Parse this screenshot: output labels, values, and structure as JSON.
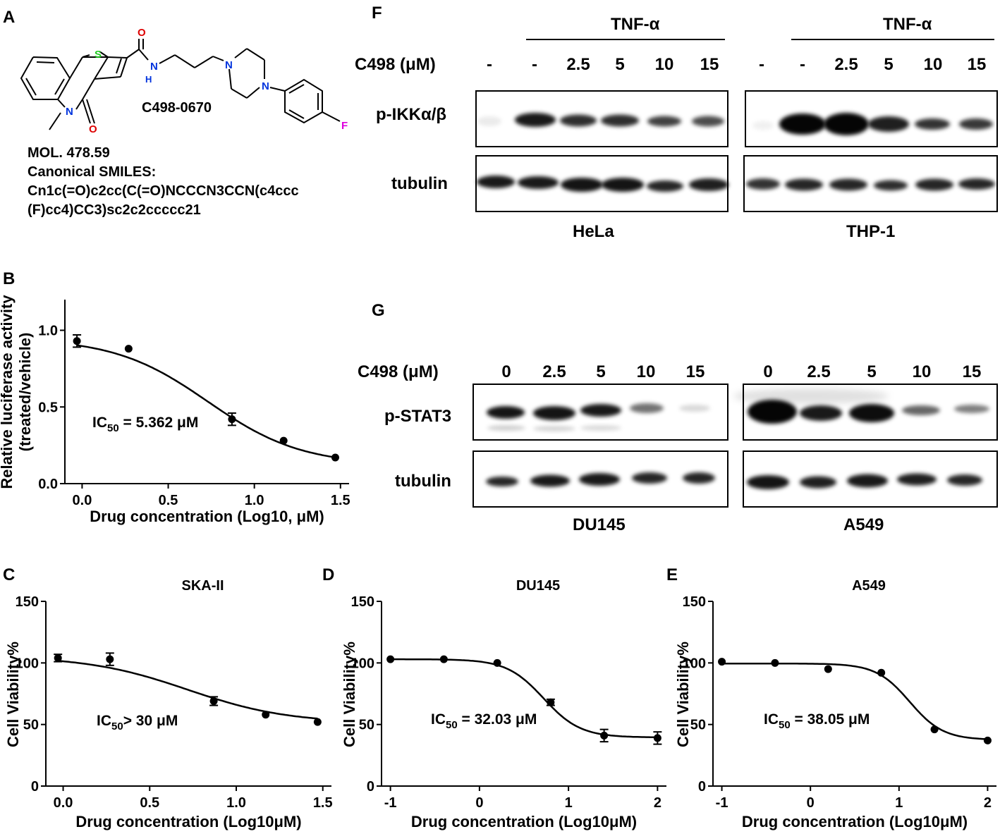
{
  "panels": {
    "A": {
      "letter": "A",
      "compound_name": "C498-0670",
      "mol_label": "MOL. 478.59",
      "smiles_label": "Canonical SMILES:",
      "smiles_line1": "Cn1c(=O)c2cc(C(=O)NCCCN3CCN(c4ccc",
      "smiles_line2": "(F)cc4)CC3)sc2c2ccccc21",
      "atoms": {
        "S": "S",
        "O": "O",
        "N": "N",
        "H": "H",
        "F": "F"
      },
      "colors": {
        "S": "#22cc22",
        "O": "#dd0000",
        "N": "#0033dd",
        "F": "#dd00dd"
      }
    },
    "F": {
      "letter": "F",
      "treatment": "TNF-α",
      "conc_label": "C498 (μM)",
      "lanes": [
        "-",
        "-",
        "2.5",
        "5",
        "10",
        "15"
      ],
      "rows": [
        "p-IKKα/β",
        "tubulin"
      ],
      "cells": [
        "HeLa",
        "THP-1"
      ]
    },
    "G": {
      "letter": "G",
      "conc_label": "C498 (μM)",
      "lanes": [
        "0",
        "2.5",
        "5",
        "10",
        "15"
      ],
      "rows": [
        "p-STAT3",
        "tubulin"
      ],
      "cells": [
        "DU145",
        "A549"
      ]
    }
  },
  "chart_data": [
    {
      "panel": "B",
      "type": "scatter",
      "title": "",
      "xlabel": "Drug concentration (Log10, μM)",
      "ylabel_lines": [
        "Relative luciferase activity",
        "(treated/vehicle)"
      ],
      "xlim": [
        -0.1,
        1.55
      ],
      "ylim": [
        0,
        1.2
      ],
      "xticks": [
        "0.0",
        "0.5",
        "1.0",
        "1.5"
      ],
      "yticks": [
        "0.0",
        "0.5",
        "1.0"
      ],
      "x": [
        -0.03,
        0.27,
        0.87,
        1.17,
        1.47
      ],
      "y": [
        0.93,
        0.88,
        0.42,
        0.28,
        0.17
      ],
      "err": [
        0.04,
        0.0,
        0.04,
        0.0,
        0.0
      ],
      "fit": {
        "bottom": 0.12,
        "top": 0.95,
        "logic50": 0.73,
        "hill": 1.6
      },
      "annotation": {
        "pre": "IC",
        "sub": "50",
        "post": " = 5.362 μM"
      }
    },
    {
      "panel": "C",
      "type": "scatter",
      "title": "SKA-II",
      "xlabel": "Drug concentration (Log10μM)",
      "ylabel_lines": [
        "Cell Viability%"
      ],
      "xlim": [
        -0.1,
        1.55
      ],
      "ylim": [
        0,
        150
      ],
      "xticks": [
        "0.0",
        "0.5",
        "1.0",
        "1.5"
      ],
      "yticks": [
        "0",
        "50",
        "100",
        "150"
      ],
      "x": [
        -0.03,
        0.27,
        0.87,
        1.17,
        1.47
      ],
      "y": [
        104,
        103,
        69,
        58,
        52
      ],
      "err": [
        3,
        5,
        3.5,
        0,
        0
      ],
      "fit": {
        "bottom": 51,
        "top": 105.5,
        "logic50": 0.72,
        "hill": 1.5
      },
      "annotation": {
        "pre": "IC",
        "sub": "50",
        "post": "> 30 μM"
      }
    },
    {
      "panel": "D",
      "type": "scatter",
      "title": "DU145",
      "xlabel": "Drug concentration (Log10μM)",
      "ylabel_lines": [
        "Cell Viability%"
      ],
      "xlim": [
        -1.1,
        2.1
      ],
      "ylim": [
        0,
        150
      ],
      "xticks": [
        "-1",
        "0",
        "1",
        "2"
      ],
      "yticks": [
        "0",
        "50",
        "100",
        "150"
      ],
      "x": [
        -1.0,
        -0.4,
        0.2,
        0.8,
        1.4,
        2.0
      ],
      "y": [
        103,
        103,
        100,
        68,
        41,
        39
      ],
      "err": [
        0,
        0,
        0,
        2.5,
        5,
        5
      ],
      "fit": {
        "bottom": 39.5,
        "top": 103,
        "logic50": 0.72,
        "hill": 2.1
      },
      "annotation": {
        "pre": "IC",
        "sub": "50",
        "post": " = 32.03 μM"
      }
    },
    {
      "panel": "E",
      "type": "scatter",
      "title": "A549",
      "xlabel": "Drug concentration (Log10μM)",
      "ylabel_lines": [
        "Cell Viability%"
      ],
      "xlim": [
        -1.1,
        2.1
      ],
      "ylim": [
        0,
        150
      ],
      "xticks": [
        "-1",
        "0",
        "1",
        "2"
      ],
      "yticks": [
        "0",
        "50",
        "100",
        "150"
      ],
      "x": [
        -1.0,
        -0.4,
        0.2,
        0.8,
        1.4,
        2.0
      ],
      "y": [
        101,
        100,
        95,
        92,
        46,
        37
      ],
      "err": [
        0,
        0,
        0,
        0,
        0,
        0
      ],
      "fit": {
        "bottom": 37.5,
        "top": 99.5,
        "logic50": 1.12,
        "hill": 2.3
      },
      "annotation": {
        "pre": "IC",
        "sub": "50",
        "post": " = 38.05 μM"
      }
    }
  ]
}
